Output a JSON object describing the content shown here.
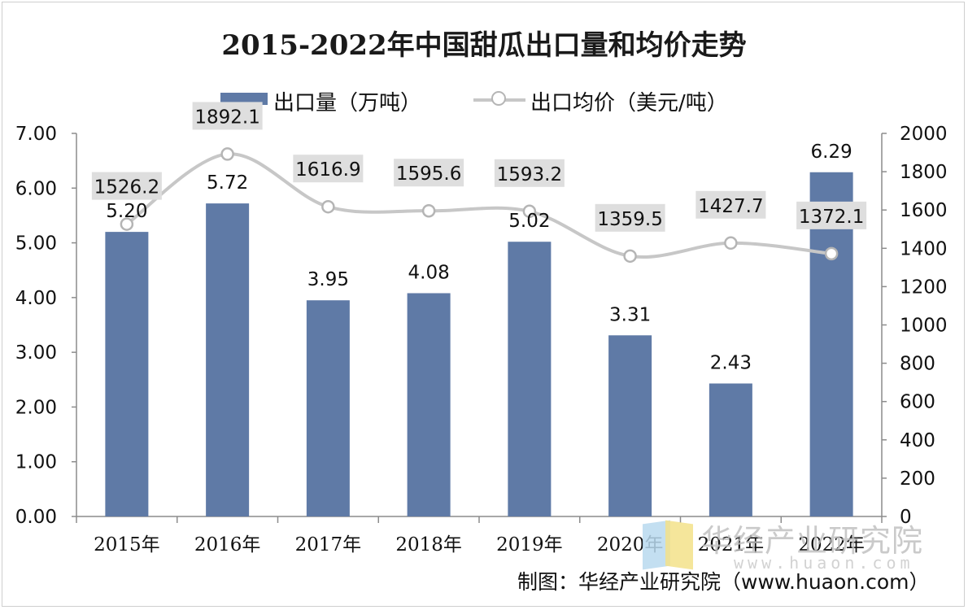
{
  "chart_data": {
    "type": "bar",
    "title": "2015-2022年中国甜瓜出口量和均价走势",
    "categories": [
      "2015年",
      "2016年",
      "2017年",
      "2018年",
      "2019年",
      "2020年",
      "2021年",
      "2022年"
    ],
    "series": [
      {
        "name": "出口量（万吨）",
        "type": "bar",
        "axis": "left",
        "color": "#5f7aa6",
        "values": [
          5.2,
          5.72,
          3.95,
          4.08,
          5.02,
          3.31,
          2.43,
          6.29
        ],
        "labels": [
          "5.20",
          "5.72",
          "3.95",
          "4.08",
          "5.02",
          "3.31",
          "2.43",
          "6.29"
        ]
      },
      {
        "name": "出口均价（美元/吨）",
        "type": "line",
        "axis": "right",
        "color": "#c7c7c7",
        "values": [
          1526.2,
          1892.1,
          1616.9,
          1595.6,
          1593.2,
          1359.5,
          1427.7,
          1372.1
        ],
        "labels": [
          "1526.2",
          "1892.1",
          "1616.9",
          "1595.6",
          "1593.2",
          "1359.5",
          "1427.7",
          "1372.1"
        ]
      }
    ],
    "y_left": {
      "lim": [
        0,
        7
      ],
      "ticks": [
        "0.00",
        "1.00",
        "2.00",
        "3.00",
        "4.00",
        "5.00",
        "6.00",
        "7.00"
      ]
    },
    "y_right": {
      "lim": [
        0,
        2000
      ],
      "ticks": [
        "0",
        "200",
        "400",
        "600",
        "800",
        "1000",
        "1200",
        "1400",
        "1600",
        "1800",
        "2000"
      ]
    },
    "grid": false,
    "legend_position": "top"
  },
  "legend": {
    "bar_label": "出口量（万吨）",
    "line_label": "出口均价（美元/吨）"
  },
  "watermark": {
    "brand": "华经产业研究院",
    "url": "www.huaon.com"
  },
  "source": "制图：华经产业研究院（www.huaon.com）"
}
